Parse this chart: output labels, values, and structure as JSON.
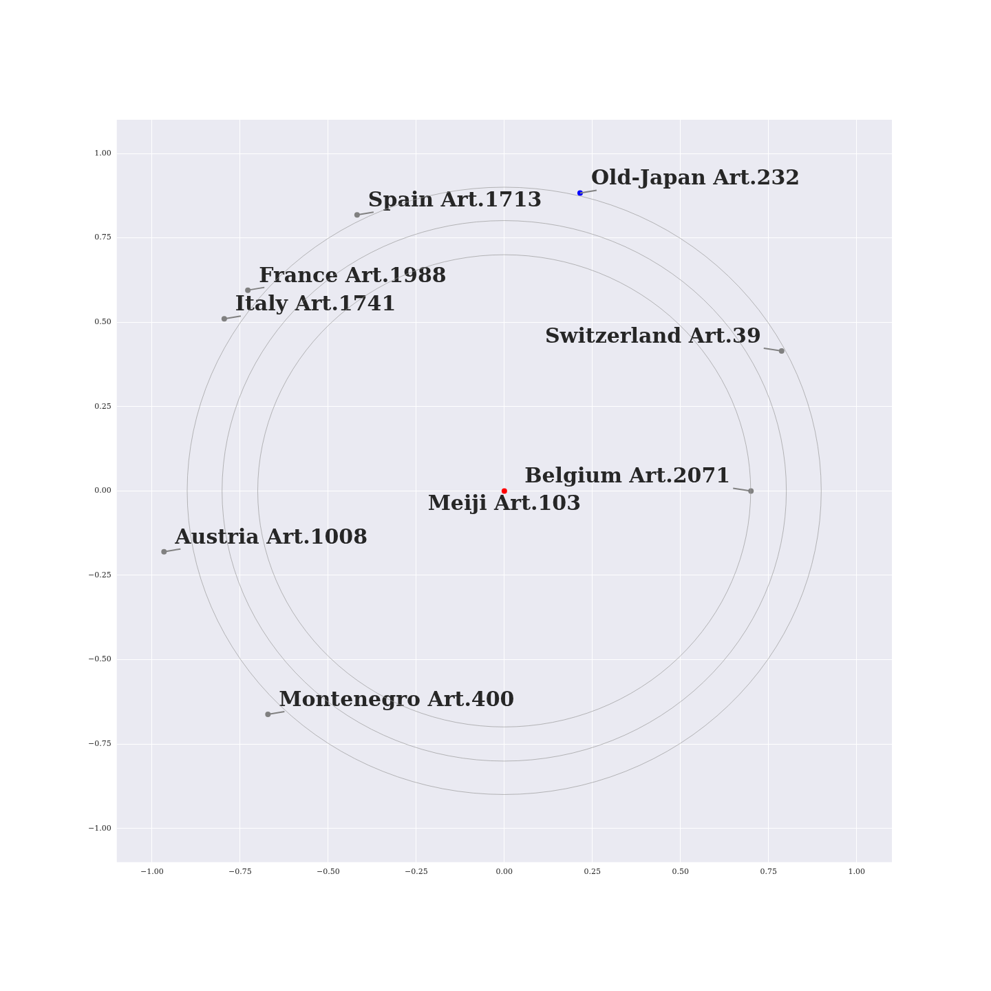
{
  "chart_data": {
    "type": "scatter",
    "xlim": [
      -1.1,
      1.1
    ],
    "ylim": [
      -1.1,
      1.1
    ],
    "xticks": [
      {
        "value": -1,
        "label": "−1.00"
      },
      {
        "value": -0.75,
        "label": "−0.75"
      },
      {
        "value": -0.5,
        "label": "−0.50"
      },
      {
        "value": -0.25,
        "label": "−0.25"
      },
      {
        "value": 0,
        "label": "0.00"
      },
      {
        "value": 0.25,
        "label": "0.25"
      },
      {
        "value": 0.5,
        "label": "0.50"
      },
      {
        "value": 0.75,
        "label": "0.75"
      },
      {
        "value": 1,
        "label": "1.00"
      }
    ],
    "yticks": [
      {
        "value": -1,
        "label": "−1.00"
      },
      {
        "value": -0.75,
        "label": "−0.75"
      },
      {
        "value": -0.5,
        "label": "−0.50"
      },
      {
        "value": -0.25,
        "label": "−0.25"
      },
      {
        "value": 0,
        "label": "0.00"
      },
      {
        "value": 0.25,
        "label": "0.25"
      },
      {
        "value": 0.5,
        "label": "0.50"
      },
      {
        "value": 0.75,
        "label": "0.75"
      },
      {
        "value": 1,
        "label": "1.00"
      }
    ],
    "grid": true,
    "marker": "circle",
    "series": [
      {
        "x": [
          0,
          0.215,
          -0.418,
          -0.728,
          -0.795,
          0.787,
          0.7,
          -0.966,
          -0.671
        ],
        "values": [
          0,
          0.883,
          0.818,
          0.595,
          0.51,
          0.415,
          0,
          -0.18,
          -0.662
        ],
        "colors": [
          "#ff0000",
          "#0000ff",
          "#808080",
          "#808080",
          "#808080",
          "#808080",
          "#808080",
          "#808080",
          "#808080"
        ]
      }
    ],
    "annotations": [
      {
        "text": "Meiji Art.103",
        "x": 0,
        "y": 0
      },
      {
        "text": "Old-Japan Art.232",
        "x": 0.215,
        "y": 0.883
      },
      {
        "text": "Spain Art.1713",
        "x": -0.418,
        "y": 0.818
      },
      {
        "text": "France Art.1988",
        "x": -0.728,
        "y": 0.595
      },
      {
        "text": "Italy Art.1741",
        "x": -0.795,
        "y": 0.51
      },
      {
        "text": "Switzerland Art.39",
        "x": 0.787,
        "y": 0.415
      },
      {
        "text": "Belgium Art.2071",
        "x": 0.7,
        "y": 0
      },
      {
        "text": "Austria Art.1008",
        "x": -0.966,
        "y": -0.18
      },
      {
        "text": "Montenegro Art.400",
        "x": -0.671,
        "y": -0.662
      }
    ]
  }
}
